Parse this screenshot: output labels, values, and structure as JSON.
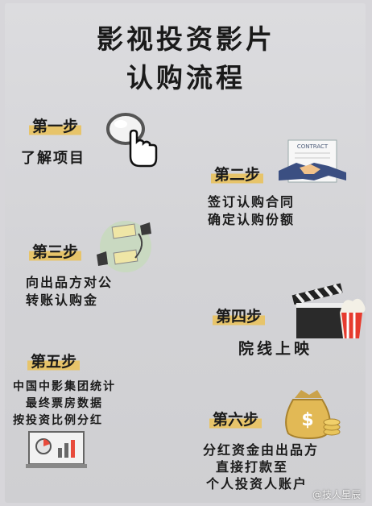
{
  "title": {
    "line1": "影视投资影片",
    "line2": "认购流程"
  },
  "steps": [
    {
      "label": "第一步",
      "lines": [
        "了解项目"
      ],
      "icon": "magnifier-hand-icon"
    },
    {
      "label": "第二步",
      "lines": [
        "签订认购合同",
        "确定认购份额"
      ],
      "icon": "contract-handshake-icon",
      "icon_text": "CONTRACT"
    },
    {
      "label": "第三步",
      "lines": [
        "向出品方对公",
        "转账认购金"
      ],
      "icon": "money-transfer-icon"
    },
    {
      "label": "第四步",
      "lines": [
        "院线上映"
      ],
      "icon": "clapperboard-popcorn-icon"
    },
    {
      "label": "第五步",
      "lines": [
        "中国中影集团统计",
        "最终票房数据",
        "按投资比例分红"
      ],
      "icon": "report-chart-icon"
    },
    {
      "label": "第六步",
      "lines": [
        "分红资金由出品方",
        "直接打款至",
        "个人投资人账户"
      ],
      "icon": "money-bag-coins-icon"
    }
  ],
  "watermark": "@技人星辰",
  "colors": {
    "background": "#d7d6da",
    "highlight": "#e7c46a",
    "text": "#1a1a1a"
  }
}
